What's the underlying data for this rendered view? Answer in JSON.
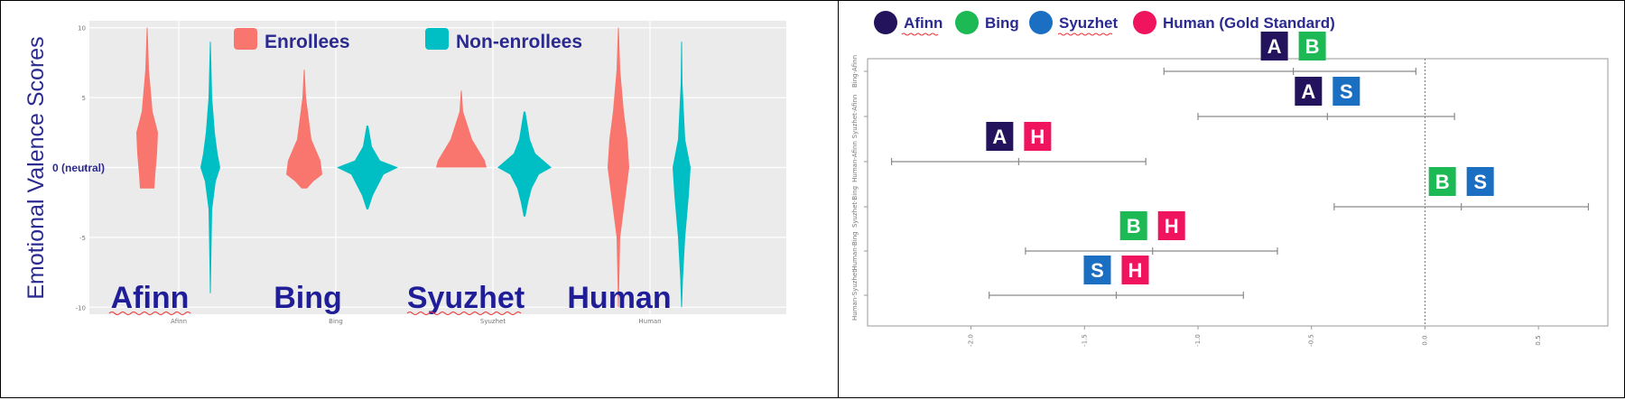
{
  "chart_data": [
    {
      "type": "violin",
      "ylabel": "Emotional Valence Scores",
      "ylim": [
        -10.5,
        10.5
      ],
      "y_ticks": [
        "10",
        "5",
        "0",
        "-5",
        "-10"
      ],
      "y_tick_values": [
        10,
        5,
        0,
        -5,
        -10
      ],
      "neutral_label": "0 (neutral)",
      "categories": [
        "Afinn",
        "Bing",
        "Syuzhet",
        "Human"
      ],
      "axis_tick_labels": [
        "Afinn",
        "Bing",
        "Syuzhet",
        "Human"
      ],
      "legend": [
        {
          "name": "Enrollees",
          "color": "#f8766d"
        },
        {
          "name": "Non-enrollees",
          "color": "#00bfc4"
        }
      ],
      "legend_position": "top",
      "grid": true,
      "series": [
        {
          "name": "Enrollees",
          "color": "#f8766d",
          "ranges": [
            [
              -1.5,
              10
            ],
            [
              -1.5,
              7
            ],
            [
              0,
              5.5
            ],
            [
              -10,
              10
            ]
          ]
        },
        {
          "name": "Non-enrollees",
          "color": "#00bfc4",
          "ranges": [
            [
              -9,
              9
            ],
            [
              -3,
              3
            ],
            [
              -3.5,
              4
            ],
            [
              -10,
              9
            ]
          ]
        }
      ]
    },
    {
      "type": "interval",
      "legend": [
        {
          "name": "Afinn",
          "color": "#23135c"
        },
        {
          "name": "Bing",
          "color": "#1db954"
        },
        {
          "name": "Syuzhet",
          "color": "#1b6fc2"
        },
        {
          "name": "Human (Gold Standard)",
          "color": "#f0135d"
        }
      ],
      "legend_position": "top",
      "xlim": [
        -2.4,
        0.75
      ],
      "x_ticks": [
        "-2.0",
        "-1.5",
        "-1.0",
        "-0.5",
        "0.0",
        "0.5"
      ],
      "x_tick_values": [
        -2.0,
        -1.5,
        -1.0,
        -0.5,
        0.0,
        0.5
      ],
      "reference_line": 0,
      "rows": [
        {
          "label": "Bing-Afinn",
          "center": -0.58,
          "low": -1.15,
          "high": -0.04,
          "badges": [
            "A",
            "B"
          ]
        },
        {
          "label": "Syuzhet-Afinn",
          "center": -0.43,
          "low": -1.0,
          "high": 0.13,
          "badges": [
            "A",
            "S"
          ]
        },
        {
          "label": "Human-Afinn",
          "center": -1.79,
          "low": -2.35,
          "high": -1.23,
          "badges": [
            "A",
            "H"
          ]
        },
        {
          "label": "Syuzhet-Bing",
          "center": 0.16,
          "low": -0.4,
          "high": 0.72,
          "badges": [
            "B",
            "S"
          ]
        },
        {
          "label": "Human-Bing",
          "center": -1.2,
          "low": -1.76,
          "high": -0.65,
          "badges": [
            "B",
            "H"
          ]
        },
        {
          "label": "Human-Syuzhet",
          "center": -1.36,
          "low": -1.92,
          "high": -0.8,
          "badges": [
            "S",
            "H"
          ]
        }
      ],
      "badge_colors": {
        "A": "#23135c",
        "B": "#1db954",
        "S": "#1b6fc2",
        "H": "#f0135d"
      }
    }
  ]
}
